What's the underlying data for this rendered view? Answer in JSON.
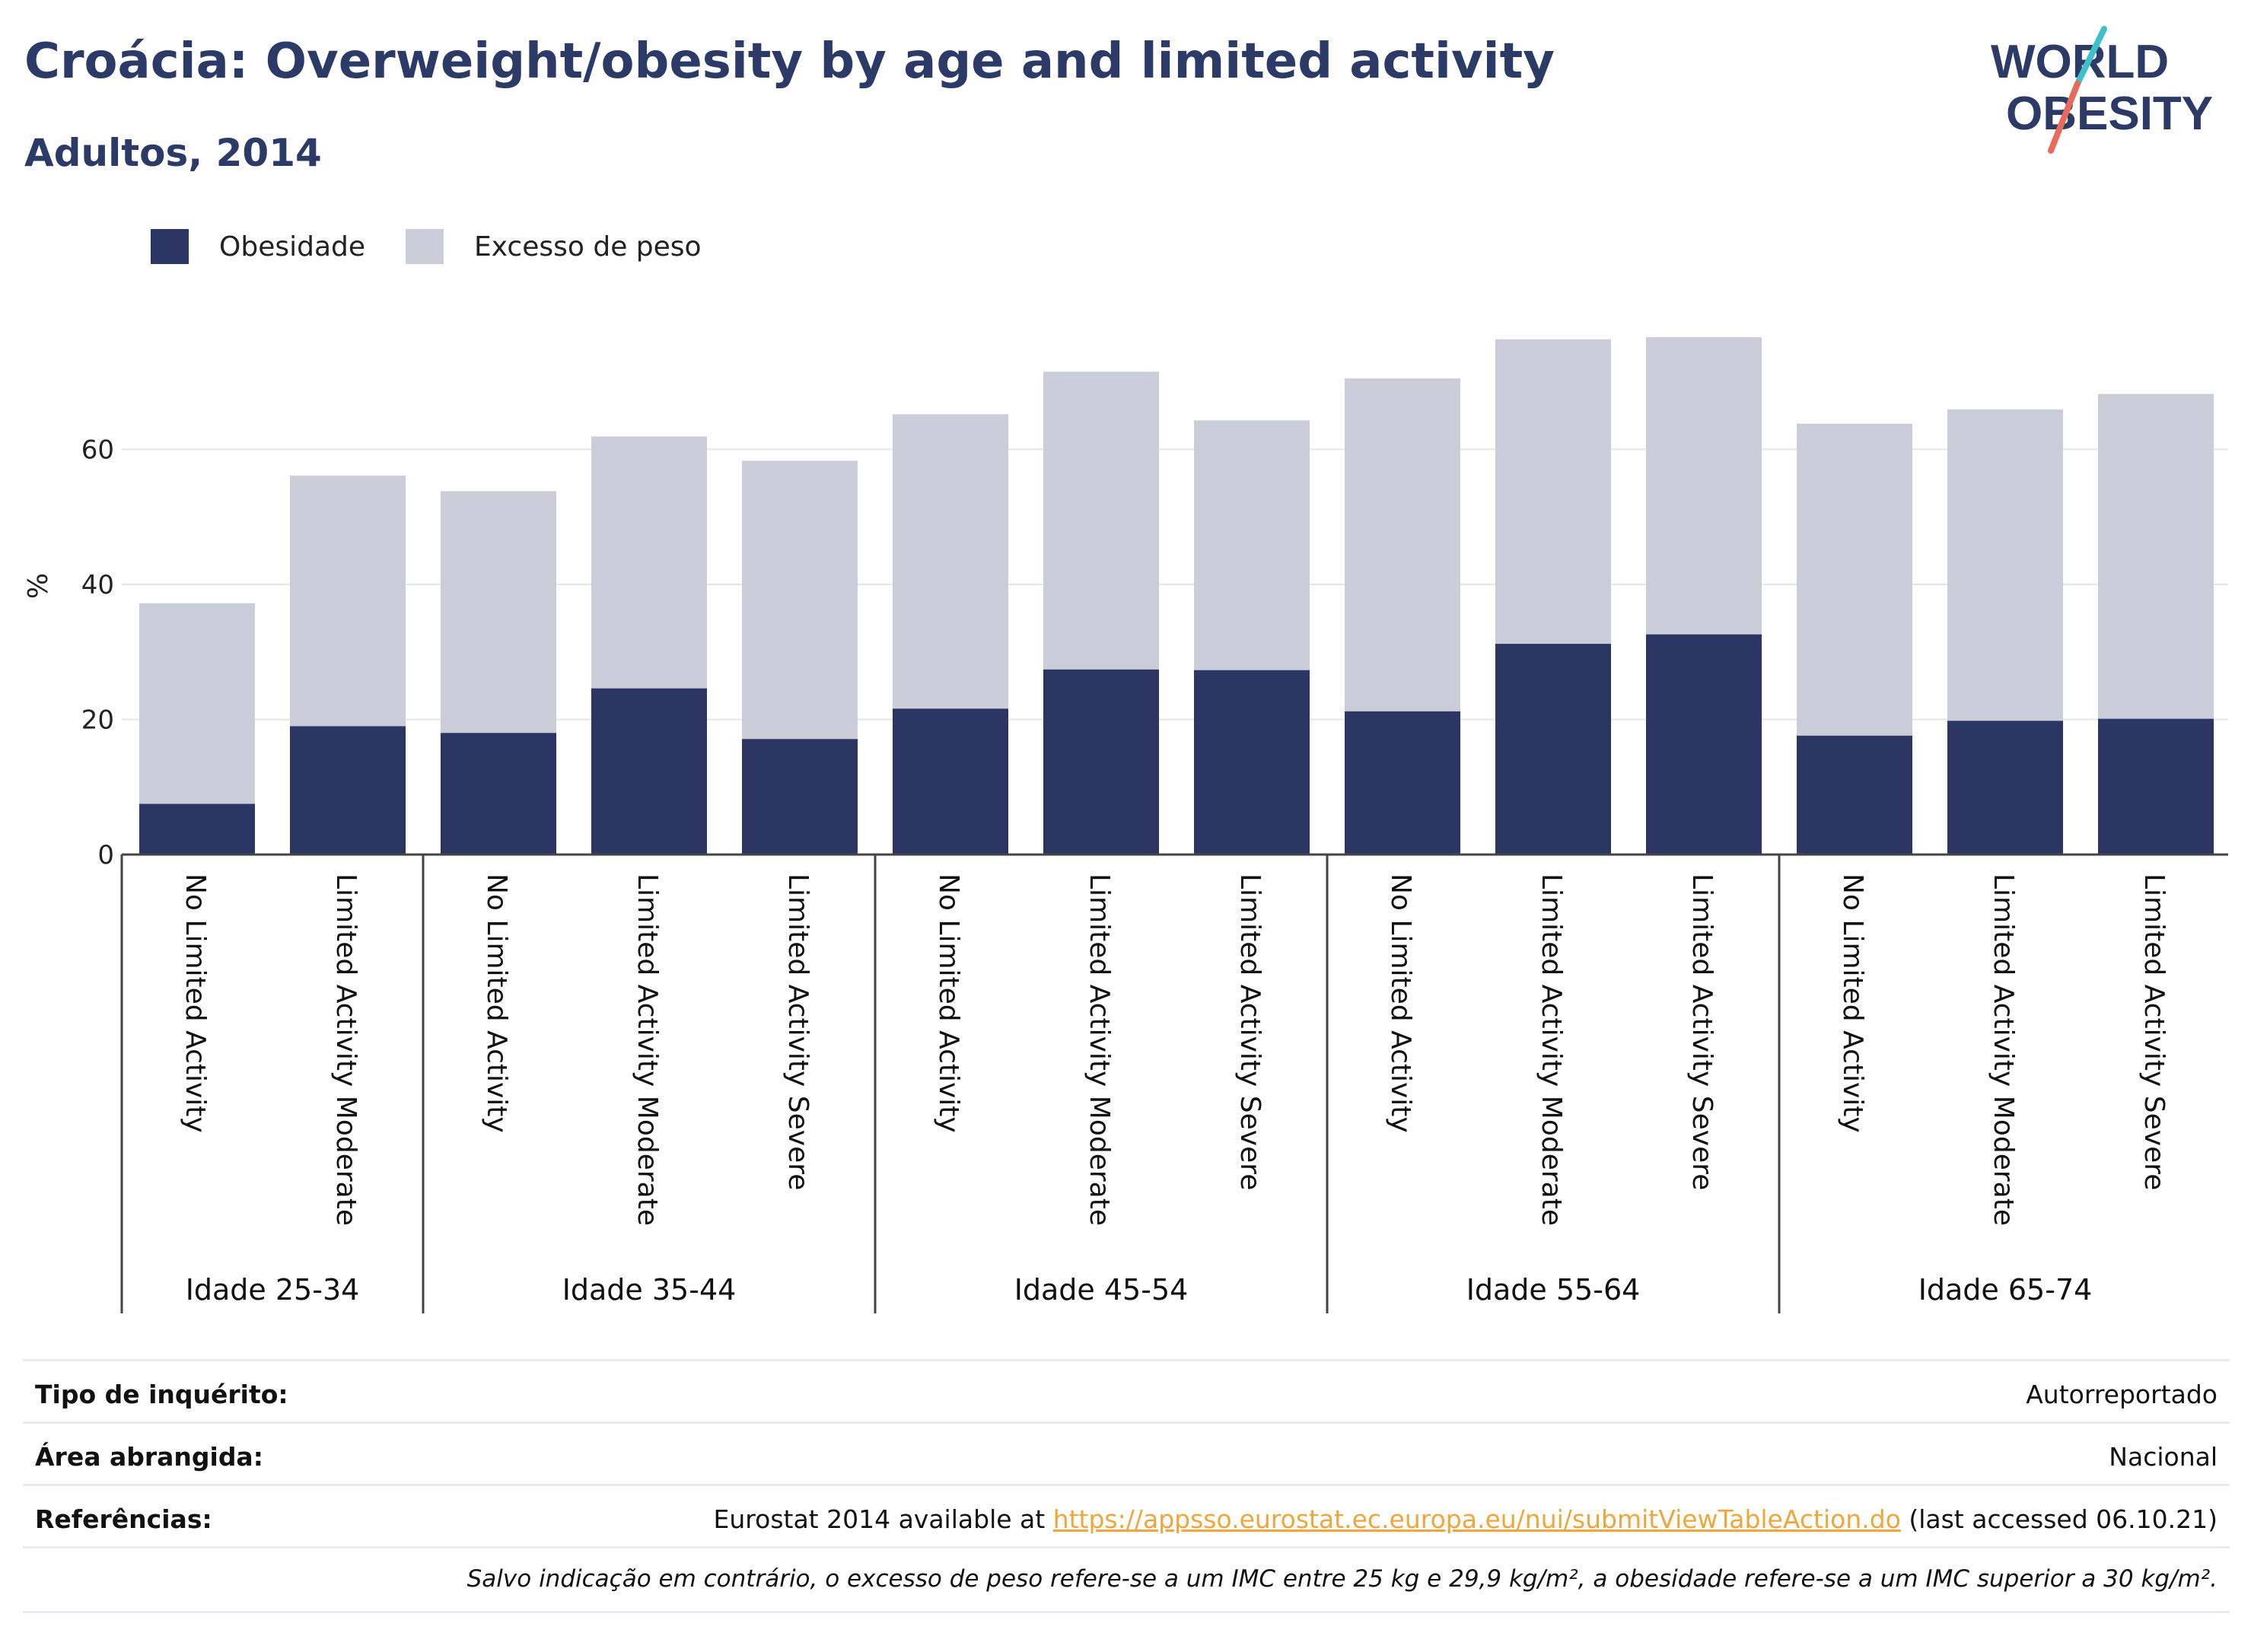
{
  "header": {
    "title": "Croácia: Overweight/obesity by age and limited activity",
    "subtitle": "Adultos, 2014"
  },
  "logo": {
    "line1": "WORLD",
    "line2": "OBESITY"
  },
  "colors": {
    "obesity": "#2b3665",
    "overweight": "#cbcdd8",
    "title": "#2b3a67",
    "link": "#f0a63b"
  },
  "chart_data": {
    "type": "bar",
    "stacked": false,
    "ylabel": "%",
    "ylim": [
      0,
      80
    ],
    "yticks": [
      0,
      20,
      40,
      60
    ],
    "grid": true,
    "legend_position": "top-left",
    "groups": [
      {
        "label": "Idade 25-34",
        "categories": [
          "No Limited Activity",
          "Limited Activity Moderate"
        ]
      },
      {
        "label": "Idade 35-44",
        "categories": [
          "No Limited Activity",
          "Limited Activity Moderate",
          "Limited Activity Severe"
        ]
      },
      {
        "label": "Idade 45-54",
        "categories": [
          "No Limited Activity",
          "Limited Activity Moderate",
          "Limited Activity Severe"
        ]
      },
      {
        "label": "Idade 55-64",
        "categories": [
          "No Limited Activity",
          "Limited Activity Moderate",
          "Limited Activity Severe"
        ]
      },
      {
        "label": "Idade 65-74",
        "categories": [
          "No Limited Activity",
          "Limited Activity Moderate",
          "Limited Activity Severe"
        ]
      }
    ],
    "series": [
      {
        "name": "Obesidade",
        "values": [
          7.5,
          19.0,
          18.0,
          24.6,
          17.1,
          21.6,
          27.4,
          27.3,
          21.2,
          31.2,
          32.6,
          17.6,
          19.8,
          20.1
        ]
      },
      {
        "name": "Excesso de peso",
        "values": [
          37.2,
          56.1,
          53.8,
          61.9,
          58.3,
          65.2,
          71.5,
          64.3,
          70.5,
          76.3,
          76.6,
          63.8,
          65.9,
          68.2
        ]
      }
    ]
  },
  "info": {
    "survey_type_label": "Tipo de inquérito:",
    "survey_type_value": "Autorreportado",
    "area_label": "Área abrangida:",
    "area_value": "Nacional",
    "refs_label": "Referências:",
    "refs_prefix": "Eurostat 2014 available at ",
    "refs_link": "https://appsso.eurostat.ec.europa.eu/nui/submitViewTableAction.do",
    "refs_suffix": " (last accessed 06.10.21)",
    "note": "Salvo indicação em contrário, o excesso de peso refere-se a um IMC entre 25 kg e 29,9 kg/m², a obesidade refere-se a um IMC superior a 30 kg/m²."
  }
}
